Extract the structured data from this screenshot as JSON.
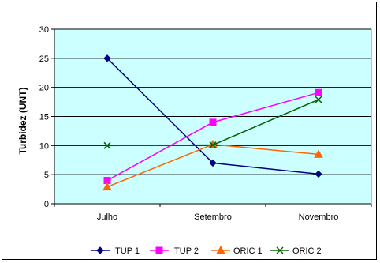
{
  "chart_data": {
    "type": "line",
    "title": "",
    "xlabel": "",
    "ylabel": "Turbidez (UNT)",
    "categories": [
      "Julho",
      "Setembro",
      "Novembro"
    ],
    "ylim": [
      0,
      30
    ],
    "yticks": [
      0,
      5,
      10,
      15,
      20,
      25,
      30
    ],
    "grid": "horizontal",
    "legend_position": "bottom",
    "plot_background": "#ccffff",
    "series": [
      {
        "name": "ITUP 1",
        "values": [
          25,
          7,
          5.1
        ],
        "color": "#000080",
        "marker": "diamond"
      },
      {
        "name": "ITUP 2",
        "values": [
          4,
          14,
          19.1
        ],
        "color": "#ff00ff",
        "marker": "square"
      },
      {
        "name": "ORIC 1",
        "values": [
          2.9,
          10.2,
          8.5
        ],
        "color": "#ff6600",
        "marker": "triangle"
      },
      {
        "name": "ORIC 2",
        "values": [
          10,
          10.1,
          17.9
        ],
        "color": "#006400",
        "marker": "x"
      }
    ]
  }
}
